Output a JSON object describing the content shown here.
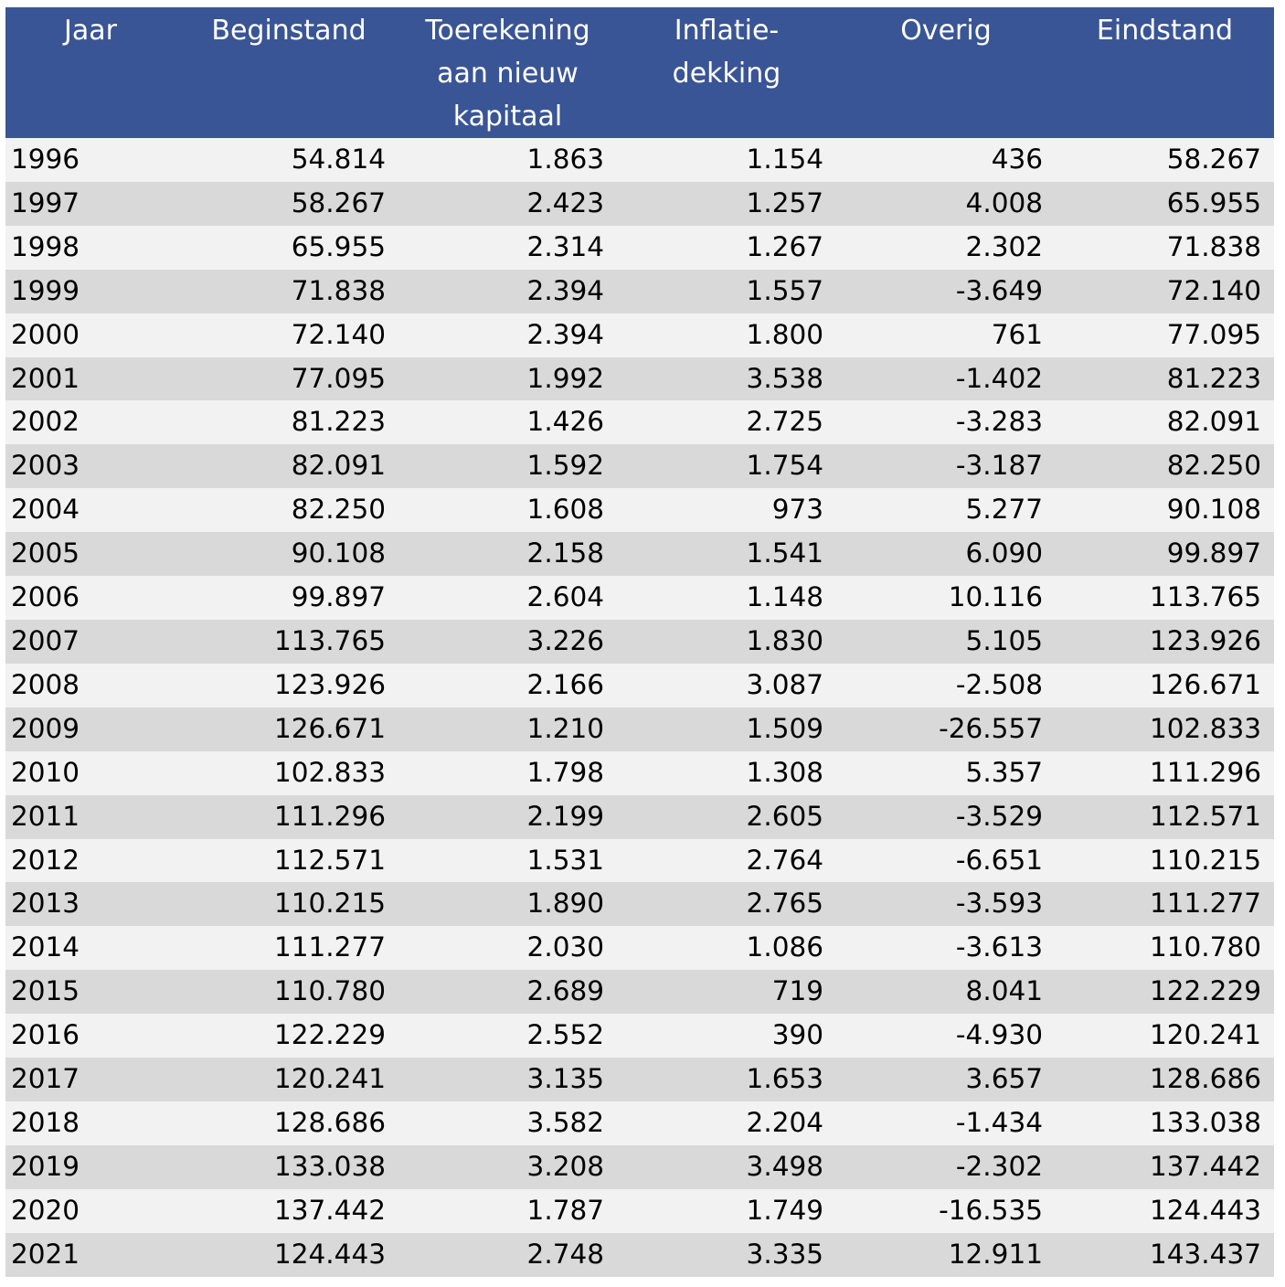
{
  "table": {
    "headers": [
      "Jaar",
      "Beginstand",
      "Toerekening\naan nieuw\nkapitaal",
      "Inflatie-\ndekking",
      "Overig",
      "Eindstand"
    ],
    "rows": [
      [
        "1996",
        "54.814",
        "1.863",
        "1.154",
        "436",
        "58.267"
      ],
      [
        "1997",
        "58.267",
        "2.423",
        "1.257",
        "4.008",
        "65.955"
      ],
      [
        "1998",
        "65.955",
        "2.314",
        "1.267",
        "2.302",
        "71.838"
      ],
      [
        "1999",
        "71.838",
        "2.394",
        "1.557",
        "-3.649",
        "72.140"
      ],
      [
        "2000",
        "72.140",
        "2.394",
        "1.800",
        "761",
        "77.095"
      ],
      [
        "2001",
        "77.095",
        "1.992",
        "3.538",
        "-1.402",
        "81.223"
      ],
      [
        "2002",
        "81.223",
        "1.426",
        "2.725",
        "-3.283",
        "82.091"
      ],
      [
        "2003",
        "82.091",
        "1.592",
        "1.754",
        "-3.187",
        "82.250"
      ],
      [
        "2004",
        "82.250",
        "1.608",
        "973",
        "5.277",
        "90.108"
      ],
      [
        "2005",
        "90.108",
        "2.158",
        "1.541",
        "6.090",
        "99.897"
      ],
      [
        "2006",
        "99.897",
        "2.604",
        "1.148",
        "10.116",
        "113.765"
      ],
      [
        "2007",
        "113.765",
        "3.226",
        "1.830",
        "5.105",
        "123.926"
      ],
      [
        "2008",
        "123.926",
        "2.166",
        "3.087",
        "-2.508",
        "126.671"
      ],
      [
        "2009",
        "126.671",
        "1.210",
        "1.509",
        "-26.557",
        "102.833"
      ],
      [
        "2010",
        "102.833",
        "1.798",
        "1.308",
        "5.357",
        "111.296"
      ],
      [
        "2011",
        "111.296",
        "2.199",
        "2.605",
        "-3.529",
        "112.571"
      ],
      [
        "2012",
        "112.571",
        "1.531",
        "2.764",
        "-6.651",
        "110.215"
      ],
      [
        "2013",
        "110.215",
        "1.890",
        "2.765",
        "-3.593",
        "111.277"
      ],
      [
        "2014",
        "111.277",
        "2.030",
        "1.086",
        "-3.613",
        "110.780"
      ],
      [
        "2015",
        "110.780",
        "2.689",
        "719",
        "8.041",
        "122.229"
      ],
      [
        "2016",
        "122.229",
        "2.552",
        "390",
        "-4.930",
        "120.241"
      ],
      [
        "2017",
        "120.241",
        "3.135",
        "1.653",
        "3.657",
        "128.686"
      ],
      [
        "2018",
        "128.686",
        "3.582",
        "2.204",
        "-1.434",
        "133.038"
      ],
      [
        "2019",
        "133.038",
        "3.208",
        "3.498",
        "-2.302",
        "137.442"
      ],
      [
        "2020",
        "137.442",
        "1.787",
        "1.749",
        "-16.535",
        "124.443"
      ],
      [
        "2021",
        "124.443",
        "2.748",
        "3.335",
        "12.911",
        "143.437"
      ]
    ]
  },
  "colors": {
    "header_bg": "#3a5595",
    "row_light": "#f2f2f2",
    "row_dark": "#d9d9d9"
  }
}
